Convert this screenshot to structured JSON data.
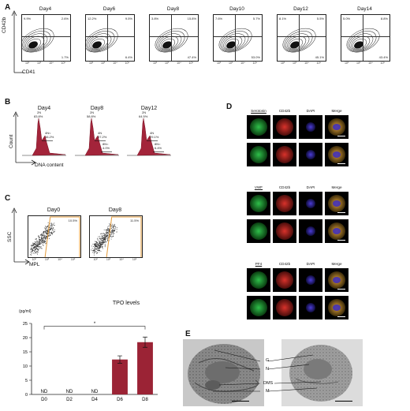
{
  "panels": {
    "A": {
      "letter": "A",
      "ylabel": "CD42b",
      "xlabel": "CD41",
      "plots": [
        {
          "title": "Day4",
          "q_ul": "9.9%",
          "q_ur": "2.6%",
          "q_lr": "1.7%"
        },
        {
          "title": "Day6",
          "q_ul": "12.2%",
          "q_ur": "9.5%",
          "q_lr": "6.4%"
        },
        {
          "title": "Day8",
          "q_ul": "3.8%",
          "q_ur": "15.8%",
          "q_lr": "47.4%"
        },
        {
          "title": "Day10",
          "q_ul": "7.6%",
          "q_ur": "5.7%",
          "q_lr": "53.0%"
        },
        {
          "title": "Day12",
          "q_ul": "8.1%",
          "q_ur": "5.5%",
          "q_lr": "45.1%"
        },
        {
          "title": "Day14",
          "q_ul": "5.0%",
          "q_ur": "8.8%",
          "q_lr": "43.4%"
        }
      ],
      "ticks": [
        "10²",
        "10³",
        "10⁴",
        "10⁵"
      ]
    },
    "B": {
      "letter": "B",
      "ylabel": "Count",
      "xlabel": "DNA content",
      "plots": [
        {
          "title": "Day4",
          "n2": "2N",
          "v2": "83.8%",
          "n4": "4N<",
          "v4": "16.2%"
        },
        {
          "title": "Day8",
          "n2": "2N",
          "v2": "58.8%",
          "n4": "4N",
          "v4": "37.2%",
          "n8": "8N<",
          "v8": "4.0%"
        },
        {
          "title": "Day12",
          "n2": "2N",
          "v2": "64.5%",
          "n4": "4N",
          "v4": "29.1%",
          "n8": "8N<",
          "v8": "6.4%"
        }
      ]
    },
    "C": {
      "letter": "C",
      "ylabel": "SSC",
      "xlabel": "MPL",
      "plots": [
        {
          "title": "Day0",
          "gate": "10.5%"
        },
        {
          "title": "Day8",
          "gate": "11.5%"
        }
      ],
      "ticks": [
        "10²",
        "10³",
        "10⁴",
        "10⁵"
      ]
    },
    "D": {
      "letter": "D",
      "groups": [
        {
          "headers": [
            "Serotonin",
            "CD42b",
            "DAPI",
            "Merge"
          ]
        },
        {
          "headers": [
            "VWF",
            "CD42b",
            "DAPI",
            "Merge"
          ]
        },
        {
          "headers": [
            "PF4",
            "CD42b",
            "DAPI",
            "Merge"
          ]
        }
      ]
    },
    "E": {
      "letter": "E",
      "labels": [
        "G",
        "N",
        "DMS",
        "M"
      ]
    }
  },
  "chart_data": {
    "type": "bar",
    "title": "TPO levels",
    "ylabel": "(pg/ml)",
    "categories": [
      "D0",
      "D2",
      "D4",
      "D6",
      "D8"
    ],
    "values": [
      0,
      0,
      0,
      12.3,
      18.4
    ],
    "errors": [
      0,
      0,
      0,
      1.3,
      1.8
    ],
    "bar_labels": [
      "ND",
      "ND",
      "ND",
      "",
      ""
    ],
    "ylim": [
      0,
      25
    ],
    "yticks": [
      0,
      5,
      10,
      15,
      20,
      25
    ],
    "significance": {
      "from": "D0",
      "to": "D8",
      "label": "*"
    },
    "bar_color": "#9b2335"
  }
}
